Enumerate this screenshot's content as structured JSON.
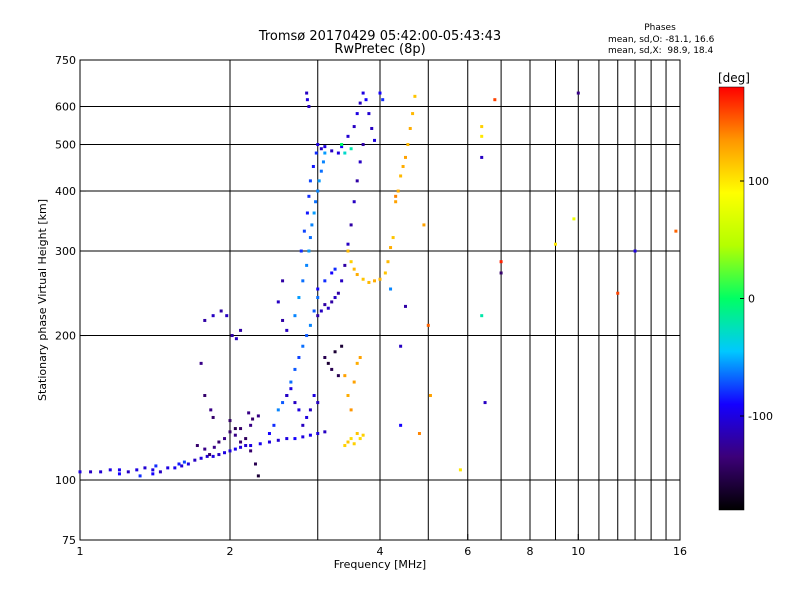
{
  "title_line1": "Tromsø 20170429 05:42:00-05:43:43",
  "title_line2": "RwPretec (8p)",
  "phases_box": {
    "heading": "Phases",
    "line_o": "mean, sd,O: -81.1, 16.6",
    "line_x": "mean, sd,X:  98.9, 18.4"
  },
  "colorbar": {
    "unit_label": "[deg]",
    "ticks": [
      {
        "value": 100,
        "label": "100"
      },
      {
        "value": 0,
        "label": "0"
      },
      {
        "value": -100,
        "label": "-100"
      }
    ],
    "range": [
      -180,
      180
    ],
    "colormap": [
      "#000000",
      "#3c0078",
      "#1400ff",
      "#00c8ff",
      "#00ff64",
      "#b4ff00",
      "#ffff00",
      "#ff9600",
      "#ff0000"
    ]
  },
  "chart_data": {
    "type": "scatter",
    "xlabel": "Frequency [MHz]",
    "ylabel": "Stationary phase Virtual Height [km]",
    "xscale": "log",
    "yscale": "log",
    "xlim": [
      1,
      16
    ],
    "ylim": [
      75,
      750
    ],
    "grid": true,
    "xticks": [
      {
        "value": 1,
        "label": "1"
      },
      {
        "value": 2,
        "label": "2"
      },
      {
        "value": 4,
        "label": "4"
      },
      {
        "value": 6,
        "label": "6"
      },
      {
        "value": 8,
        "label": "8"
      },
      {
        "value": 10,
        "label": "10"
      },
      {
        "value": 16,
        "label": "16"
      }
    ],
    "xgrid": [
      2,
      3,
      4,
      5,
      6,
      7,
      8,
      9,
      10,
      11,
      12,
      13,
      14,
      15
    ],
    "yticks": [
      {
        "value": 75,
        "label": "75"
      },
      {
        "value": 100,
        "label": "100"
      },
      {
        "value": 200,
        "label": "200"
      },
      {
        "value": 300,
        "label": "300"
      },
      {
        "value": 400,
        "label": "400"
      },
      {
        "value": 500,
        "label": "500"
      },
      {
        "value": 600,
        "label": "600"
      },
      {
        "value": 750,
        "label": "750"
      }
    ],
    "ygrid": [
      100,
      200,
      300,
      400,
      500,
      600
    ],
    "points": [
      [
        1.0,
        104,
        -100
      ],
      [
        1.05,
        104,
        -110
      ],
      [
        1.1,
        104,
        -105
      ],
      [
        1.15,
        105,
        -100
      ],
      [
        1.2,
        105,
        -95
      ],
      [
        1.25,
        104,
        -110
      ],
      [
        1.3,
        105,
        -100
      ],
      [
        1.35,
        106,
        -105
      ],
      [
        1.4,
        105,
        -100
      ],
      [
        1.45,
        104,
        -110
      ],
      [
        1.5,
        106,
        -100
      ],
      [
        1.55,
        106,
        -95
      ],
      [
        1.6,
        107,
        -105
      ],
      [
        1.65,
        108,
        -100
      ],
      [
        1.7,
        110,
        -110
      ],
      [
        1.75,
        111,
        -100
      ],
      [
        1.8,
        112,
        -105
      ],
      [
        1.85,
        112,
        -100
      ],
      [
        1.9,
        113,
        -110
      ],
      [
        1.95,
        114,
        -100
      ],
      [
        2.0,
        115,
        -100
      ],
      [
        2.05,
        116,
        -95
      ],
      [
        2.1,
        117,
        -100
      ],
      [
        2.15,
        118,
        -105
      ],
      [
        2.2,
        118,
        -100
      ],
      [
        2.3,
        119,
        -95
      ],
      [
        2.4,
        120,
        -100
      ],
      [
        2.5,
        121,
        -105
      ],
      [
        2.6,
        122,
        -100
      ],
      [
        2.7,
        122,
        -90
      ],
      [
        2.8,
        123,
        -100
      ],
      [
        2.9,
        124,
        -95
      ],
      [
        3.0,
        125,
        -100
      ],
      [
        3.1,
        126,
        -110
      ],
      [
        1.2,
        103,
        -90
      ],
      [
        1.32,
        102,
        -80
      ],
      [
        1.4,
        103,
        -90
      ],
      [
        1.42,
        107,
        -80
      ],
      [
        1.58,
        108,
        -85
      ],
      [
        1.62,
        109,
        -75
      ],
      [
        1.72,
        118,
        -140
      ],
      [
        1.78,
        116,
        -130
      ],
      [
        1.82,
        113,
        -140
      ],
      [
        1.86,
        117,
        -130
      ],
      [
        1.9,
        120,
        -140
      ],
      [
        1.95,
        122,
        -130
      ],
      [
        2.0,
        126,
        -140
      ],
      [
        2.05,
        124,
        -130
      ],
      [
        2.1,
        120,
        -140
      ],
      [
        2.2,
        130,
        -130
      ],
      [
        1.78,
        215,
        -120
      ],
      [
        1.85,
        220,
        -110
      ],
      [
        1.92,
        225,
        -120
      ],
      [
        1.97,
        220,
        -110
      ],
      [
        2.02,
        200,
        -120
      ],
      [
        2.06,
        197,
        -110
      ],
      [
        2.1,
        205,
        -120
      ],
      [
        1.75,
        175,
        -130
      ],
      [
        1.78,
        150,
        -140
      ],
      [
        1.83,
        140,
        -130
      ],
      [
        1.85,
        135,
        -140
      ],
      [
        2.18,
        138,
        -130
      ],
      [
        2.22,
        134,
        -140
      ],
      [
        2.28,
        136,
        -130
      ],
      [
        2.0,
        133,
        -140
      ],
      [
        2.05,
        128,
        -150
      ],
      [
        2.1,
        128,
        -140
      ],
      [
        2.15,
        122,
        -145
      ],
      [
        2.2,
        115,
        -140
      ],
      [
        2.25,
        108,
        -150
      ],
      [
        2.28,
        102,
        -160
      ],
      [
        2.4,
        125,
        -90
      ],
      [
        2.45,
        130,
        -80
      ],
      [
        2.5,
        140,
        -60
      ],
      [
        2.55,
        145,
        -70
      ],
      [
        2.6,
        150,
        -80
      ],
      [
        2.65,
        160,
        -65
      ],
      [
        2.7,
        170,
        -70
      ],
      [
        2.75,
        180,
        -75
      ],
      [
        2.8,
        190,
        -65
      ],
      [
        2.85,
        200,
        -70
      ],
      [
        2.9,
        210,
        -60
      ],
      [
        2.95,
        225,
        -70
      ],
      [
        3.0,
        240,
        -65
      ],
      [
        2.7,
        220,
        -60
      ],
      [
        2.75,
        240,
        -55
      ],
      [
        2.8,
        260,
        -65
      ],
      [
        2.85,
        280,
        -60
      ],
      [
        2.88,
        300,
        -55
      ],
      [
        2.9,
        320,
        -65
      ],
      [
        2.92,
        340,
        -60
      ],
      [
        2.95,
        360,
        -55
      ],
      [
        2.97,
        380,
        -65
      ],
      [
        3.0,
        400,
        -60
      ],
      [
        3.02,
        420,
        -55
      ],
      [
        3.05,
        440,
        -65
      ],
      [
        3.08,
        460,
        -60
      ],
      [
        3.1,
        480,
        -55
      ],
      [
        2.78,
        300,
        -80
      ],
      [
        2.82,
        330,
        -75
      ],
      [
        2.86,
        360,
        -85
      ],
      [
        2.88,
        390,
        -80
      ],
      [
        2.9,
        420,
        -75
      ],
      [
        2.94,
        450,
        -85
      ],
      [
        2.98,
        480,
        -80
      ],
      [
        3.0,
        500,
        -100
      ],
      [
        2.85,
        640,
        -110
      ],
      [
        2.86,
        620,
        -100
      ],
      [
        2.88,
        600,
        -110
      ],
      [
        3.05,
        490,
        -110
      ],
      [
        3.1,
        495,
        -100
      ],
      [
        3.2,
        485,
        -110
      ],
      [
        3.3,
        480,
        -100
      ],
      [
        3.35,
        495,
        -90
      ],
      [
        3.45,
        520,
        -105
      ],
      [
        3.55,
        545,
        -110
      ],
      [
        3.6,
        580,
        -100
      ],
      [
        3.65,
        610,
        -110
      ],
      [
        3.7,
        640,
        -100
      ],
      [
        3.75,
        620,
        -90
      ],
      [
        3.8,
        580,
        -105
      ],
      [
        3.85,
        540,
        -110
      ],
      [
        3.9,
        510,
        -100
      ],
      [
        3.35,
        500,
        0
      ],
      [
        3.4,
        480,
        -30
      ],
      [
        3.5,
        490,
        -20
      ],
      [
        3.0,
        220,
        -120
      ],
      [
        3.05,
        225,
        -110
      ],
      [
        3.1,
        232,
        -120
      ],
      [
        3.15,
        228,
        -110
      ],
      [
        3.2,
        235,
        -120
      ],
      [
        3.25,
        240,
        -110
      ],
      [
        3.3,
        245,
        -120
      ],
      [
        3.35,
        260,
        -110
      ],
      [
        3.4,
        280,
        -120
      ],
      [
        3.45,
        310,
        -110
      ],
      [
        3.5,
        340,
        -120
      ],
      [
        3.55,
        380,
        -110
      ],
      [
        3.6,
        420,
        -120
      ],
      [
        3.65,
        460,
        -110
      ],
      [
        3.7,
        500,
        -120
      ],
      [
        3.0,
        250,
        -90
      ],
      [
        3.1,
        260,
        -80
      ],
      [
        3.2,
        270,
        -90
      ],
      [
        3.25,
        275,
        -80
      ],
      [
        3.1,
        180,
        -150
      ],
      [
        3.15,
        175,
        -160
      ],
      [
        3.2,
        170,
        -150
      ],
      [
        3.25,
        185,
        -160
      ],
      [
        3.3,
        165,
        -150
      ],
      [
        3.35,
        190,
        -160
      ],
      [
        2.6,
        150,
        -110
      ],
      [
        2.65,
        155,
        -100
      ],
      [
        2.7,
        145,
        -110
      ],
      [
        2.75,
        140,
        -100
      ],
      [
        2.8,
        130,
        -110
      ],
      [
        2.85,
        135,
        -100
      ],
      [
        2.9,
        140,
        -110
      ],
      [
        2.95,
        150,
        -100
      ],
      [
        3.0,
        145,
        -110
      ],
      [
        2.55,
        260,
        -120
      ],
      [
        2.5,
        235,
        -110
      ],
      [
        2.55,
        215,
        -120
      ],
      [
        2.6,
        205,
        -110
      ],
      [
        3.45,
        300,
        120
      ],
      [
        3.5,
        285,
        110
      ],
      [
        3.55,
        275,
        120
      ],
      [
        3.6,
        268,
        125
      ],
      [
        3.7,
        262,
        115
      ],
      [
        3.8,
        258,
        120
      ],
      [
        3.9,
        260,
        125
      ],
      [
        4.0,
        262,
        120
      ],
      [
        4.1,
        270,
        115
      ],
      [
        4.15,
        285,
        120
      ],
      [
        4.2,
        305,
        125
      ],
      [
        4.25,
        320,
        115
      ],
      [
        3.4,
        118,
        110
      ],
      [
        3.45,
        120,
        115
      ],
      [
        3.5,
        122,
        105
      ],
      [
        3.55,
        119,
        110
      ],
      [
        3.6,
        125,
        115
      ],
      [
        3.65,
        122,
        105
      ],
      [
        3.7,
        124,
        110
      ],
      [
        3.4,
        165,
        130
      ],
      [
        3.45,
        150,
        125
      ],
      [
        3.5,
        140,
        135
      ],
      [
        3.55,
        160,
        130
      ],
      [
        3.6,
        175,
        125
      ],
      [
        3.65,
        180,
        130
      ],
      [
        4.3,
        380,
        130
      ],
      [
        4.35,
        400,
        125
      ],
      [
        4.4,
        430,
        120
      ],
      [
        4.45,
        450,
        125
      ],
      [
        4.5,
        470,
        130
      ],
      [
        4.55,
        500,
        120
      ],
      [
        4.6,
        540,
        125
      ],
      [
        4.65,
        580,
        120
      ],
      [
        4.7,
        630,
        115
      ],
      [
        4.0,
        640,
        -90
      ],
      [
        4.05,
        620,
        -80
      ],
      [
        4.4,
        190,
        -110
      ],
      [
        4.5,
        230,
        -120
      ],
      [
        4.4,
        130,
        -90
      ],
      [
        4.3,
        390,
        140
      ],
      [
        4.9,
        340,
        130
      ],
      [
        5.0,
        210,
        150
      ],
      [
        5.05,
        150,
        130
      ],
      [
        5.8,
        105,
        100
      ],
      [
        4.8,
        125,
        140
      ],
      [
        4.2,
        250,
        -60
      ],
      [
        6.4,
        545,
        110
      ],
      [
        6.4,
        520,
        100
      ],
      [
        6.4,
        220,
        -20
      ],
      [
        6.4,
        470,
        -110
      ],
      [
        6.5,
        145,
        -110
      ],
      [
        6.8,
        620,
        160
      ],
      [
        7.0,
        285,
        170
      ],
      [
        7.0,
        270,
        -140
      ],
      [
        9.0,
        310,
        100
      ],
      [
        9.8,
        350,
        80
      ],
      [
        10.0,
        640,
        -130
      ],
      [
        12.0,
        245,
        160
      ],
      [
        13.0,
        300,
        -100
      ],
      [
        15.7,
        330,
        150
      ]
    ]
  }
}
